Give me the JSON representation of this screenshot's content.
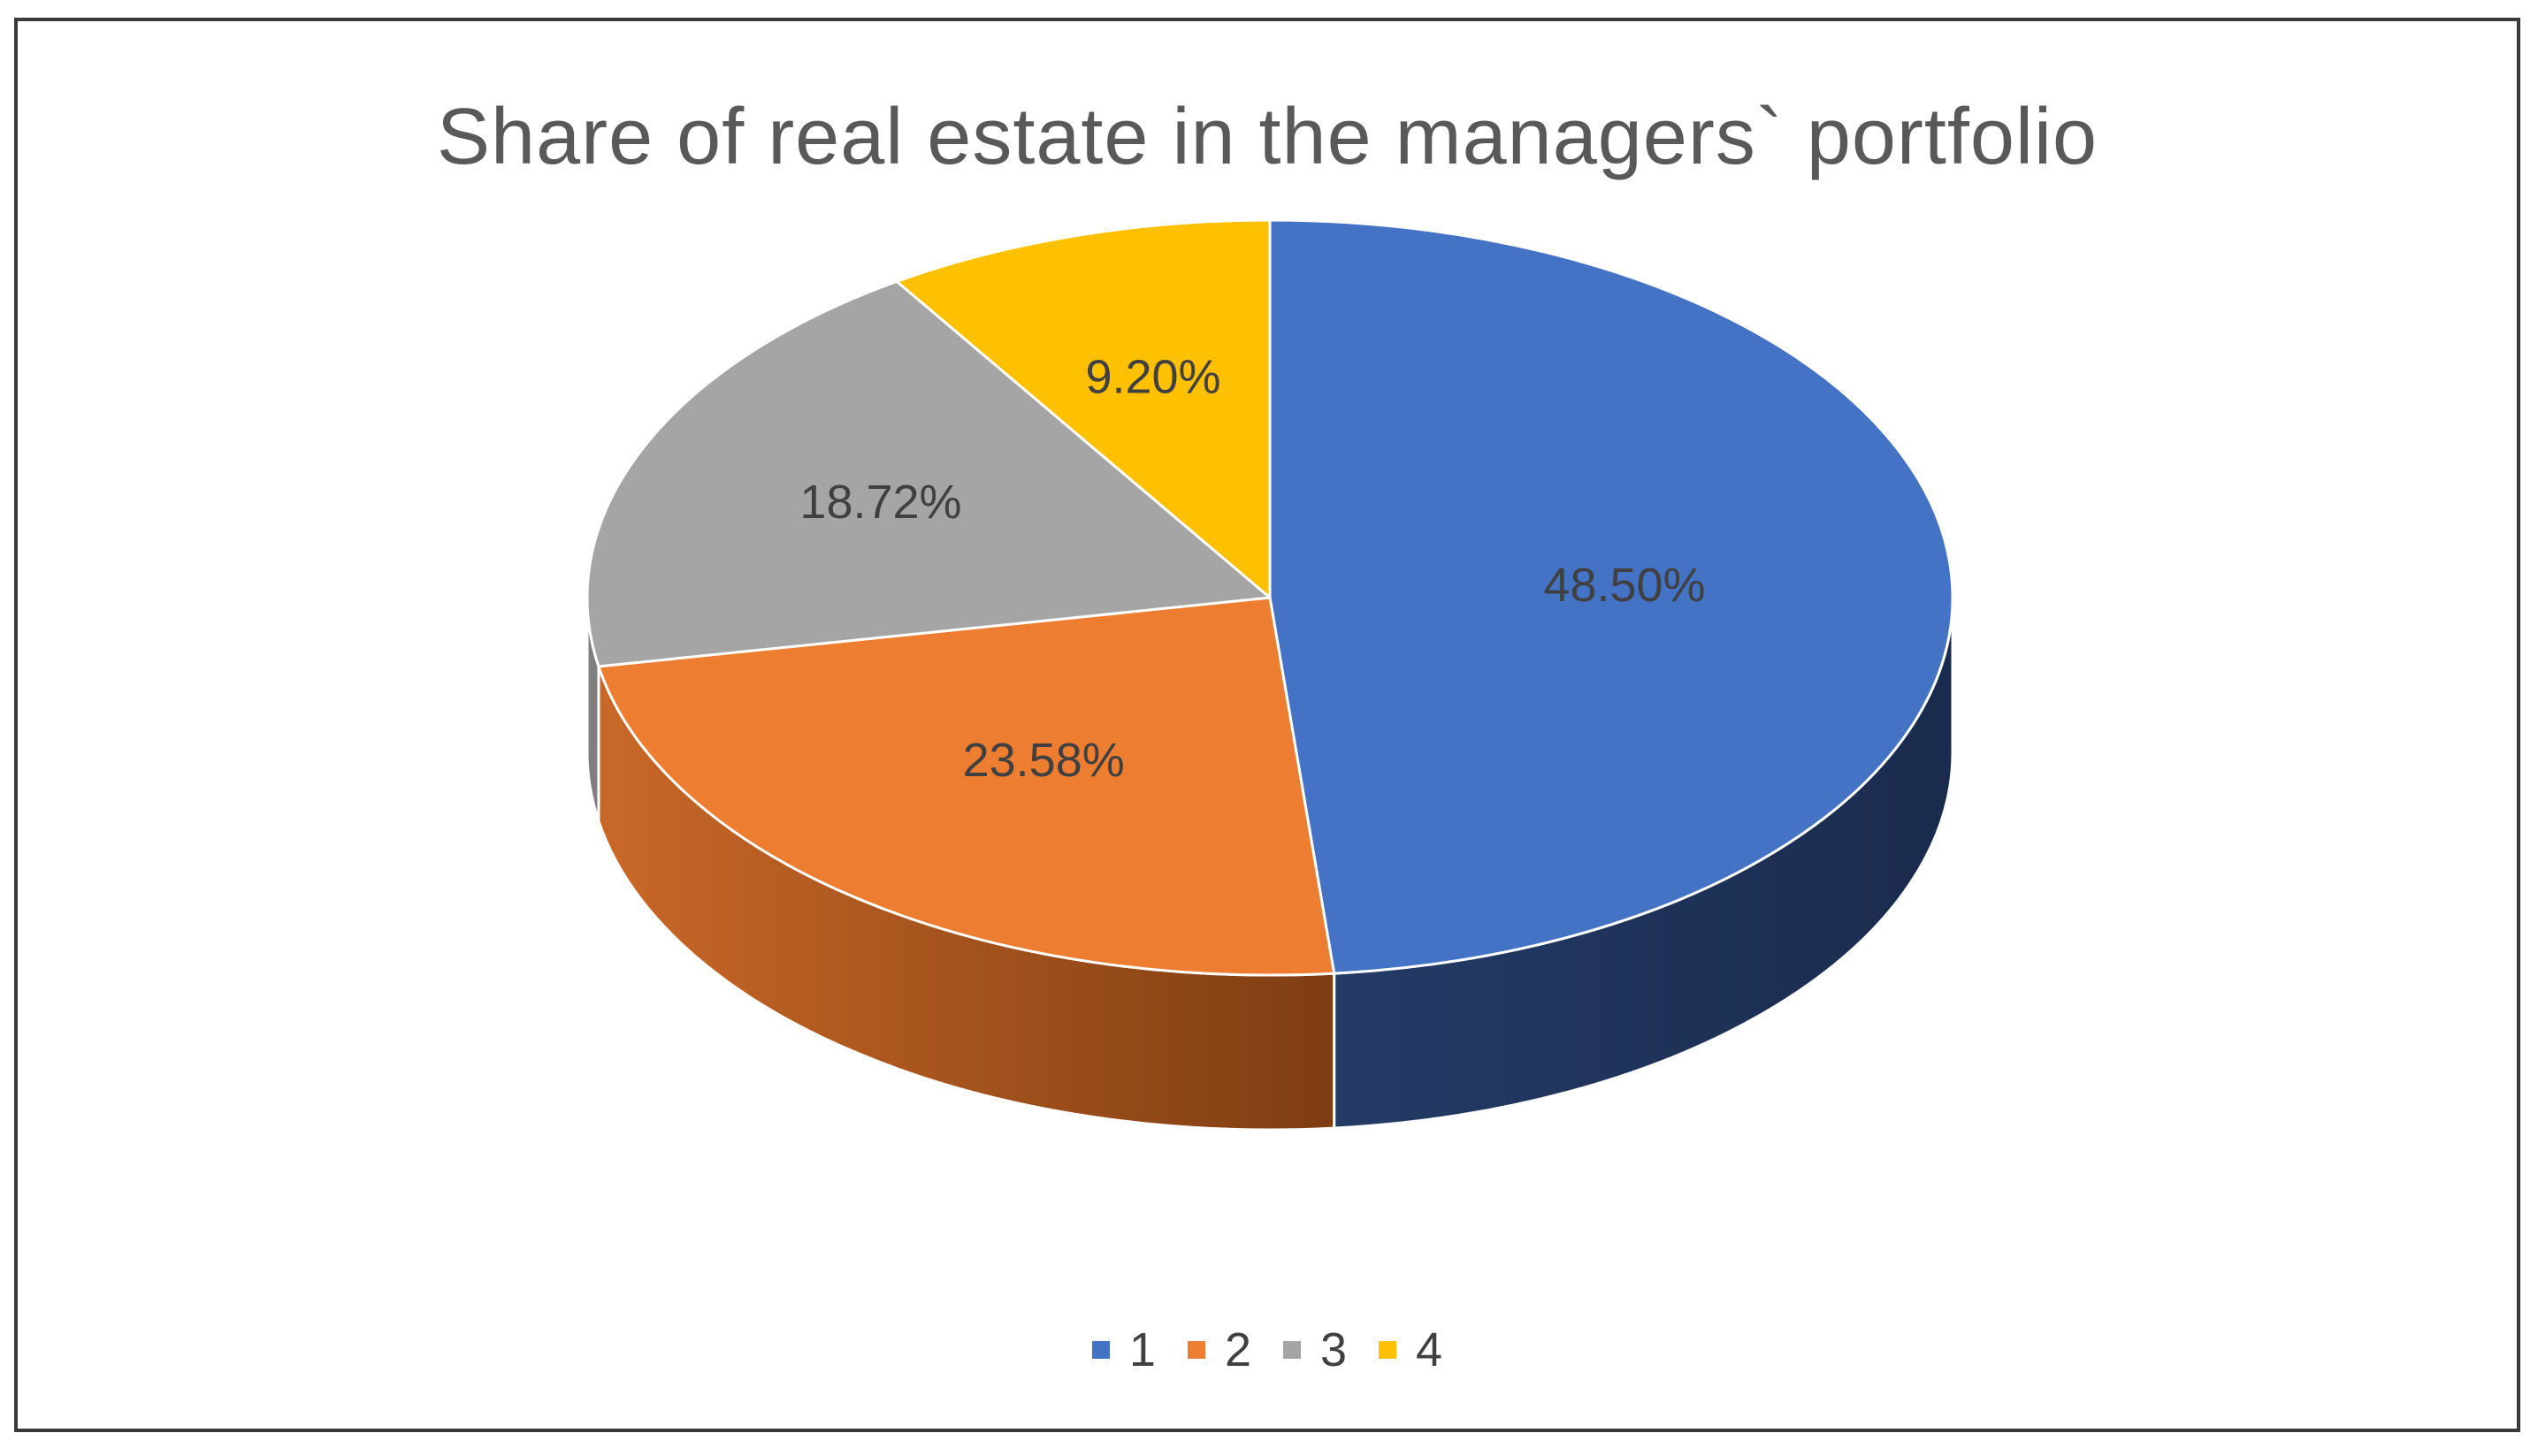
{
  "chart_data": {
    "type": "pie",
    "variant": "3d",
    "title": "Share of real estate in the managers` portfolio",
    "categories": [
      "1",
      "2",
      "3",
      "4"
    ],
    "values": [
      48.5,
      23.58,
      18.72,
      9.2
    ],
    "labels": [
      "48.50%",
      "23.58%",
      "18.72%",
      "9.20%"
    ],
    "colors": [
      "#4472C4",
      "#ED7D31",
      "#A5A5A5",
      "#FFC000"
    ],
    "side_colors": [
      "#1F3864",
      "#843C0C",
      "#7F7F7F",
      "#BF9000"
    ],
    "legend_position": "bottom"
  }
}
